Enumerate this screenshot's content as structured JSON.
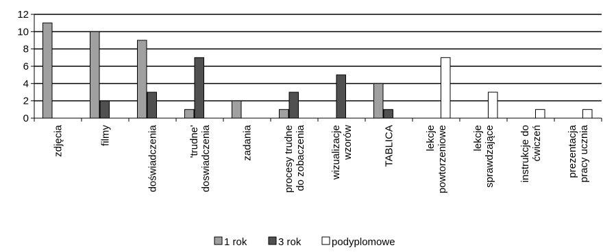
{
  "chart_data": {
    "type": "bar",
    "categories": [
      [
        "zdjęcia"
      ],
      [
        "filmy"
      ],
      [
        "doświadczenia"
      ],
      [
        "'trudne'",
        "doswiadczenia"
      ],
      [
        "zadania"
      ],
      [
        "procesy trudne",
        "do zobaczenia"
      ],
      [
        "wizualizacje",
        "wzorów"
      ],
      [
        "TABLICA"
      ],
      [
        "lekcje",
        "powtorzeniowe"
      ],
      [
        "lekcje",
        "sprawdzające"
      ],
      [
        "instrukcje do",
        "ćwiczeń"
      ],
      [
        "prezentacja",
        "pracy ucznia"
      ]
    ],
    "series": [
      {
        "name": "1 rok",
        "color": "#a0a0a0",
        "values": [
          11,
          10,
          9,
          1,
          2,
          1,
          0,
          4,
          0,
          0,
          0,
          0
        ]
      },
      {
        "name": "3 rok",
        "color": "#505050",
        "values": [
          0,
          2,
          3,
          7,
          0,
          3,
          5,
          1,
          0,
          0,
          0,
          0
        ]
      },
      {
        "name": "podyplomowe",
        "color": "#ffffff",
        "values": [
          0,
          0,
          0,
          0,
          0,
          0,
          0,
          0,
          7,
          3,
          1,
          1
        ]
      }
    ],
    "ylim": [
      0,
      12
    ],
    "yticks": [
      0,
      2,
      4,
      6,
      8,
      10,
      12
    ],
    "grid": true,
    "legend": "bottom"
  }
}
